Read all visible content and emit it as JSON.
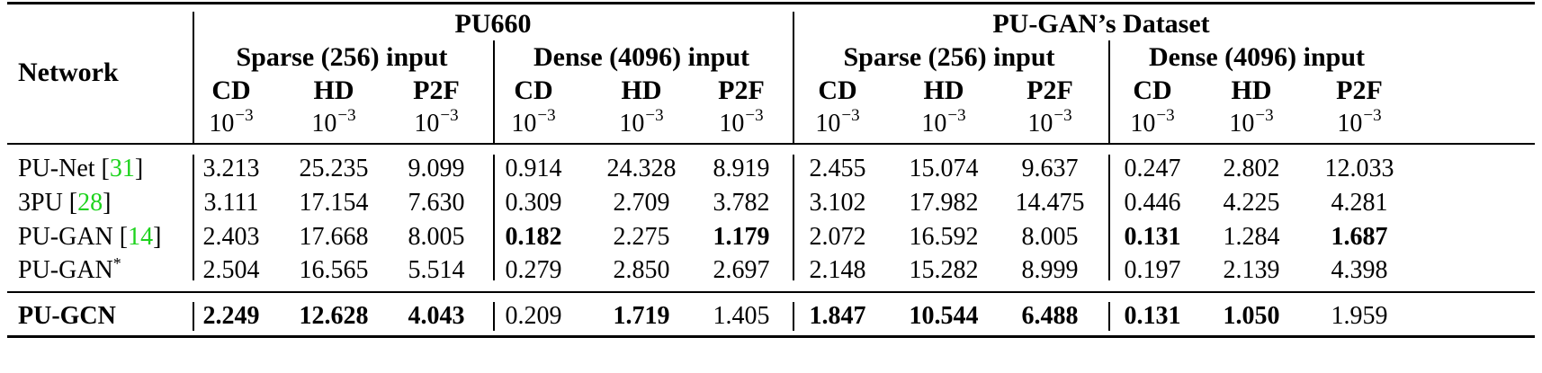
{
  "header": {
    "network_label": "Network",
    "groups": [
      {
        "name": "PU660",
        "subgroups": [
          "Sparse (256) input",
          "Dense (4096) input"
        ]
      },
      {
        "name": "PU-GAN’s Dataset",
        "subgroups": [
          "Sparse (256) input",
          "Dense (4096) input"
        ]
      }
    ],
    "metrics": [
      "CD",
      "HD",
      "P2F",
      "CD",
      "HD",
      "P2F",
      "CD",
      "HD",
      "P2F",
      "CD",
      "HD",
      "P2F"
    ],
    "unit_base": "10",
    "unit_exp": "−3"
  },
  "rows": [
    {
      "name": "PU-Net",
      "cite": "31",
      "suffix": "",
      "bold_name": false,
      "values": [
        "3.213",
        "25.235",
        "9.099",
        "0.914",
        "24.328",
        "8.919",
        "2.455",
        "15.074",
        "9.637",
        "0.247",
        "2.802",
        "12.033"
      ],
      "bold": [
        false,
        false,
        false,
        false,
        false,
        false,
        false,
        false,
        false,
        false,
        false,
        false
      ]
    },
    {
      "name": "3PU",
      "cite": "28",
      "suffix": "",
      "bold_name": false,
      "values": [
        "3.111",
        "17.154",
        "7.630",
        "0.309",
        "2.709",
        "3.782",
        "3.102",
        "17.982",
        "14.475",
        "0.446",
        "4.225",
        "4.281"
      ],
      "bold": [
        false,
        false,
        false,
        false,
        false,
        false,
        false,
        false,
        false,
        false,
        false,
        false
      ]
    },
    {
      "name": "PU-GAN",
      "cite": "14",
      "suffix": "",
      "bold_name": false,
      "values": [
        "2.403",
        "17.668",
        "8.005",
        "0.182",
        "2.275",
        "1.179",
        "2.072",
        "16.592",
        "8.005",
        "0.131",
        "1.284",
        "1.687"
      ],
      "bold": [
        false,
        false,
        false,
        true,
        false,
        true,
        false,
        false,
        false,
        true,
        false,
        true
      ]
    },
    {
      "name": "PU-GAN",
      "cite": "",
      "suffix": "*",
      "bold_name": false,
      "values": [
        "2.504",
        "16.565",
        "5.514",
        "0.279",
        "2.850",
        "2.697",
        "2.148",
        "15.282",
        "8.999",
        "0.197",
        "2.139",
        "4.398"
      ],
      "bold": [
        false,
        false,
        false,
        false,
        false,
        false,
        false,
        false,
        false,
        false,
        false,
        false
      ]
    },
    {
      "name": "PU-GCN",
      "cite": "",
      "suffix": "",
      "bold_name": true,
      "values": [
        "2.249",
        "12.628",
        "4.043",
        "0.209",
        "1.719",
        "1.405",
        "1.847",
        "10.544",
        "6.488",
        "0.131",
        "1.050",
        "1.959"
      ],
      "bold": [
        true,
        true,
        true,
        false,
        true,
        false,
        true,
        true,
        true,
        true,
        true,
        false
      ]
    }
  ]
}
